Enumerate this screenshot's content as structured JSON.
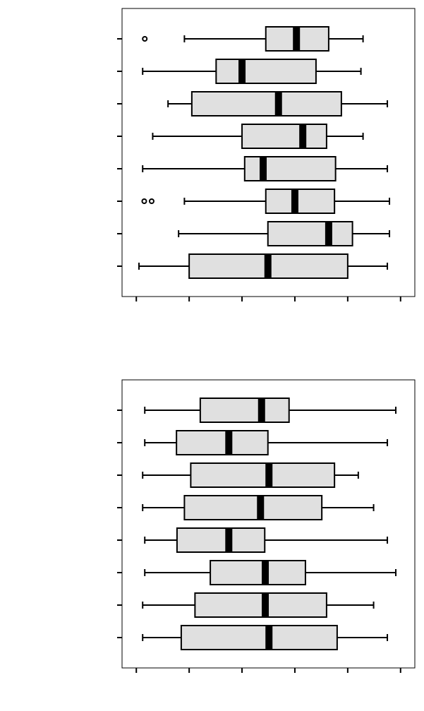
{
  "chart_data": [
    {
      "type": "boxplot",
      "orientation": "horizontal",
      "box_color": "#e0e0e0",
      "median_color": "#000000",
      "categories": [
        null,
        null,
        null,
        null,
        null,
        null,
        null,
        null
      ],
      "xlim": [
        -0.27,
        5.27
      ],
      "xticks": [
        0,
        1,
        2,
        3,
        4,
        5
      ],
      "stats": [
        {
          "whislo": 0.91,
          "q1": 2.45,
          "med": 3.03,
          "q3": 3.64,
          "whishi": 4.29,
          "fliers": [
            0.16
          ]
        },
        {
          "whislo": 0.12,
          "q1": 1.51,
          "med": 2.0,
          "q3": 3.4,
          "whishi": 4.25
        },
        {
          "whislo": 0.6,
          "q1": 1.05,
          "med": 2.69,
          "q3": 3.88,
          "whishi": 4.75
        },
        {
          "whislo": 0.31,
          "q1": 2.0,
          "med": 3.15,
          "q3": 3.6,
          "whishi": 4.29
        },
        {
          "whislo": 0.12,
          "q1": 2.05,
          "med": 2.4,
          "q3": 3.77,
          "whishi": 4.75
        },
        {
          "whislo": 0.91,
          "q1": 2.45,
          "med": 3.0,
          "q3": 3.75,
          "whishi": 4.79,
          "fliers": [
            0.15,
            0.29
          ]
        },
        {
          "whislo": 0.8,
          "q1": 2.49,
          "med": 3.64,
          "q3": 4.09,
          "whishi": 4.79
        },
        {
          "whislo": 0.05,
          "q1": 1.0,
          "med": 2.49,
          "q3": 4.0,
          "whishi": 4.75
        }
      ]
    },
    {
      "type": "boxplot",
      "orientation": "horizontal",
      "box_color": "#e0e0e0",
      "median_color": "#000000",
      "categories": [
        null,
        null,
        null,
        null,
        null,
        null,
        null,
        null
      ],
      "xlim": [
        -0.27,
        5.27
      ],
      "xticks": [
        0,
        1,
        2,
        3,
        4,
        5
      ],
      "stats": [
        {
          "whislo": 0.16,
          "q1": 1.21,
          "med": 2.37,
          "q3": 2.89,
          "whishi": 4.91
        },
        {
          "whislo": 0.16,
          "q1": 0.76,
          "med": 1.75,
          "q3": 2.49,
          "whishi": 4.75
        },
        {
          "whislo": 0.12,
          "q1": 1.03,
          "med": 2.51,
          "q3": 3.75,
          "whishi": 4.2
        },
        {
          "whislo": 0.12,
          "q1": 0.91,
          "med": 2.35,
          "q3": 3.51,
          "whishi": 4.49
        },
        {
          "whislo": 0.16,
          "q1": 0.77,
          "med": 1.75,
          "q3": 2.43,
          "whishi": 4.75
        },
        {
          "whislo": 0.16,
          "q1": 1.4,
          "med": 2.44,
          "q3": 3.2,
          "whishi": 4.91
        },
        {
          "whislo": 0.12,
          "q1": 1.11,
          "med": 2.44,
          "q3": 3.6,
          "whishi": 4.49
        },
        {
          "whislo": 0.12,
          "q1": 0.85,
          "med": 2.51,
          "q3": 3.8,
          "whishi": 4.75
        }
      ]
    }
  ]
}
